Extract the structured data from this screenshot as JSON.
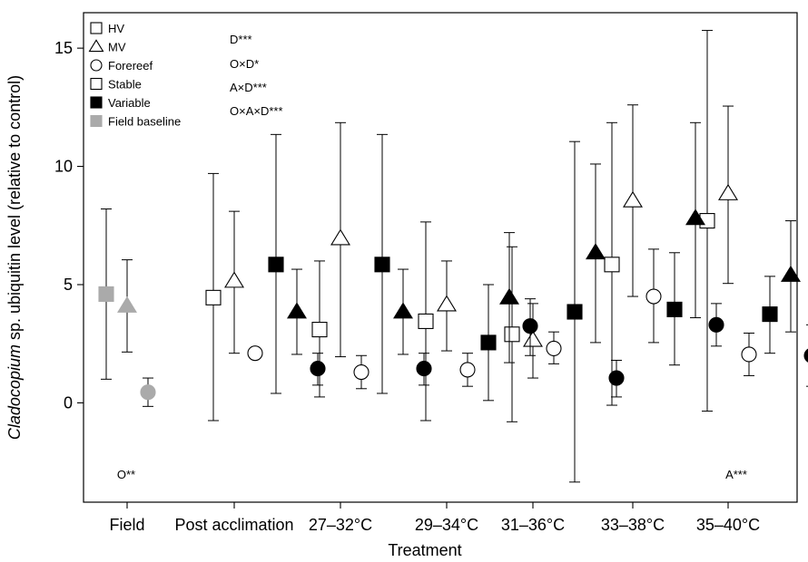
{
  "chart_data": {
    "type": "scatter",
    "xlabel": "Treatment",
    "ylabel_italic": "Cladocopium",
    "ylabel_rest": " sp. ubiquitin level (relative to control)",
    "ylim": [
      -4.2,
      16.5
    ],
    "yticks": [
      0,
      5,
      10,
      15
    ],
    "categories": [
      "Field",
      "Post acclimation",
      "27–32°C",
      "29–34°C",
      "31–36°C",
      "33–38°C",
      "35–40°C"
    ],
    "series": [
      {
        "name": "HV",
        "marker": "square",
        "fill": "#ffffff",
        "offset": -1,
        "values": [
          null,
          4.45,
          3.1,
          3.45,
          2.9,
          5.85,
          7.7
        ],
        "lower": [
          null,
          -0.75,
          0.25,
          -0.75,
          -0.8,
          -0.1,
          -0.35
        ],
        "upper": [
          null,
          9.7,
          6.0,
          7.65,
          6.6,
          11.85,
          15.75
        ]
      },
      {
        "name": "MV",
        "marker": "triangle",
        "fill": "#ffffff",
        "offset": 0,
        "values": [
          null,
          5.15,
          6.95,
          4.15,
          2.65,
          8.55,
          8.85
        ],
        "lower": [
          null,
          2.1,
          1.95,
          2.2,
          1.05,
          4.5,
          5.05
        ],
        "upper": [
          null,
          8.1,
          11.85,
          6.0,
          4.2,
          12.6,
          12.55
        ]
      },
      {
        "name": "Forereef",
        "marker": "circle",
        "fill": "#ffffff",
        "offset": 1,
        "values": [
          null,
          2.1,
          1.3,
          1.4,
          2.3,
          4.5,
          2.05
        ],
        "lower": [
          null,
          2.1,
          0.6,
          0.7,
          1.65,
          2.55,
          1.15
        ],
        "upper": [
          null,
          2.1,
          2.0,
          2.1,
          3.0,
          6.5,
          2.95
        ]
      },
      {
        "name": "Variable HV",
        "marker": "square",
        "fill": "#000000",
        "offset": 2,
        "values": [
          null,
          5.85,
          5.85,
          2.55,
          3.85,
          3.95,
          3.75
        ],
        "lower": [
          null,
          0.4,
          0.4,
          0.1,
          -3.35,
          1.6,
          2.1
        ],
        "upper": [
          null,
          11.35,
          11.35,
          5.0,
          11.05,
          6.35,
          5.35
        ]
      },
      {
        "name": "Variable MV",
        "marker": "triangle",
        "fill": "#000000",
        "offset": 3,
        "values": [
          null,
          3.85,
          3.85,
          4.45,
          6.35,
          7.8,
          5.4
        ],
        "lower": [
          null,
          2.05,
          2.05,
          1.7,
          2.55,
          3.6,
          3.0
        ],
        "upper": [
          null,
          5.65,
          5.65,
          7.2,
          10.1,
          11.85,
          7.7
        ]
      },
      {
        "name": "Variable Forereef",
        "marker": "circle",
        "fill": "#000000",
        "offset": 4,
        "values": [
          null,
          1.45,
          1.45,
          3.25,
          1.05,
          3.3,
          2.0
        ],
        "lower": [
          null,
          0.75,
          0.75,
          2.0,
          0.25,
          2.4,
          0.7
        ],
        "upper": [
          null,
          2.1,
          2.1,
          4.4,
          1.8,
          4.2,
          3.3
        ]
      },
      {
        "name": "Field baseline HV",
        "marker": "square",
        "fill": "#aaaaaa",
        "offset": -1,
        "values": [
          4.6,
          null,
          null,
          null,
          null,
          null,
          null
        ],
        "lower": [
          1.0,
          null,
          null,
          null,
          null,
          null,
          null
        ],
        "upper": [
          8.2,
          null,
          null,
          null,
          null,
          null,
          null
        ]
      },
      {
        "name": "Field baseline MV",
        "marker": "triangle",
        "fill": "#aaaaaa",
        "offset": 0,
        "values": [
          4.1,
          null,
          null,
          null,
          null,
          null,
          null
        ],
        "lower": [
          2.15,
          null,
          null,
          null,
          null,
          null,
          null
        ],
        "upper": [
          6.05,
          null,
          null,
          null,
          null,
          null,
          null
        ]
      },
      {
        "name": "Field baseline Forereef",
        "marker": "circle",
        "fill": "#aaaaaa",
        "offset": 1,
        "values": [
          0.45,
          null,
          null,
          null,
          null,
          null,
          null
        ],
        "lower": [
          -0.15,
          null,
          null,
          null,
          null,
          null,
          null
        ],
        "upper": [
          1.05,
          null,
          null,
          null,
          null,
          null,
          null
        ]
      }
    ],
    "legend": [
      {
        "label": "HV",
        "marker": "square",
        "fill": "#ffffff",
        "stroke": "#000000"
      },
      {
        "label": "MV",
        "marker": "triangle",
        "fill": "#ffffff",
        "stroke": "#000000"
      },
      {
        "label": "Forereef",
        "marker": "circle",
        "fill": "#ffffff",
        "stroke": "#000000"
      },
      {
        "label": "Stable",
        "marker": "square",
        "fill": "#ffffff",
        "stroke": "#000000"
      },
      {
        "label": "Variable",
        "marker": "square",
        "fill": "#000000",
        "stroke": "#000000"
      },
      {
        "label": "Field baseline",
        "marker": "square",
        "fill": "#aaaaaa",
        "stroke": "#aaaaaa"
      }
    ],
    "legend_position": "top-left",
    "stats_annotations": [
      "D***",
      "O×D*",
      "A×D***",
      "O×A×D***"
    ],
    "bottom_annotations": [
      {
        "text": "O**",
        "category": "Field"
      },
      {
        "text": "A***",
        "category": "35–40°C"
      }
    ],
    "grid": false,
    "colors": {
      "open": "#ffffff",
      "filled": "#000000",
      "field": "#aaaaaa"
    }
  }
}
